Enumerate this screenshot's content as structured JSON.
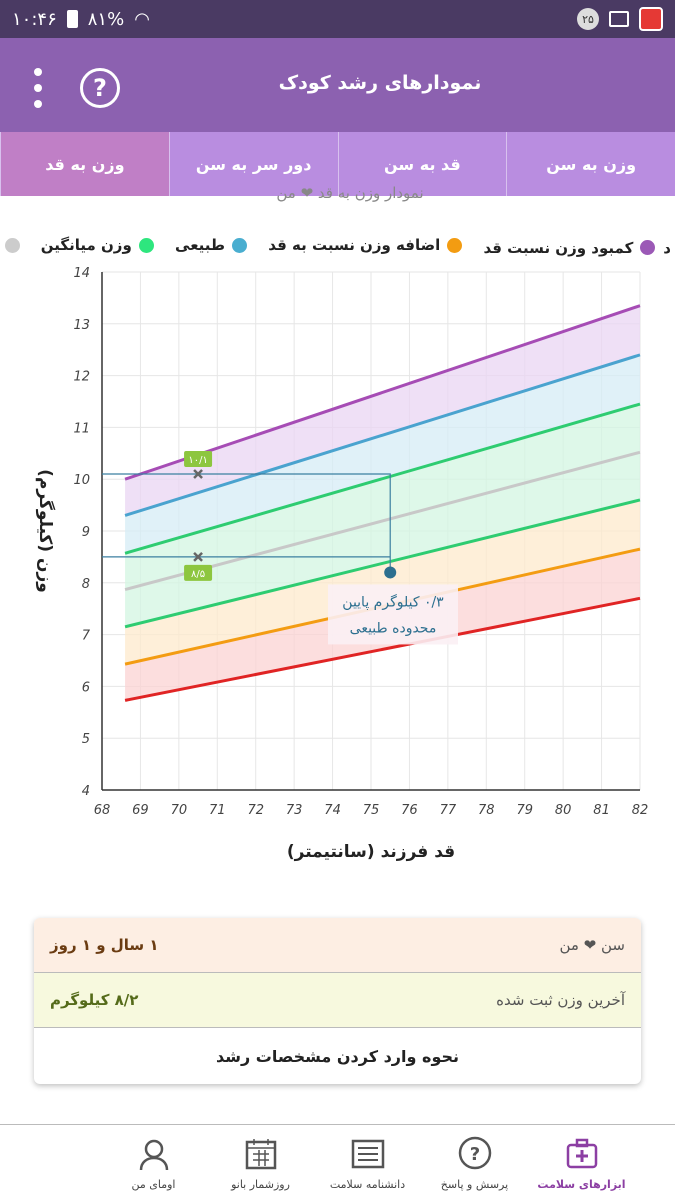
{
  "status_bar": {
    "time": "۱۰:۴۶",
    "battery": "۸۱%",
    "notification_count": "۲۵"
  },
  "header": {
    "title": "نمودارهای رشد کودک"
  },
  "tabs": [
    {
      "label": "وزن به سن",
      "active": false
    },
    {
      "label": "قد به سن",
      "active": false
    },
    {
      "label": "دور سر به سن",
      "active": false
    },
    {
      "label": "وزن به قد",
      "active": true
    }
  ],
  "chart_title_clipped": "نمودار وزن به قد ❤ من",
  "legend": [
    {
      "label": "کمبود وزن نسبت قد",
      "color": "#9b59b6",
      "prefix": "د"
    },
    {
      "label": "اضافه وزن نسبت به قد",
      "color": "#f39c12"
    },
    {
      "label": "طبیعی",
      "color": "#4aaed0"
    },
    {
      "label": "وزن میانگین",
      "color": "#2ee67e"
    },
    {
      "label": "",
      "color": "#cccccc"
    }
  ],
  "chart_data": {
    "type": "line",
    "xlabel": "قد فرزند (سانتیمتر)",
    "ylabel": "وزن (کیلوگرم)",
    "xlim": [
      68,
      82
    ],
    "ylim": [
      4,
      14
    ],
    "x_ticks": [
      68,
      69,
      70,
      71,
      72,
      73,
      74,
      75,
      76,
      77,
      78,
      79,
      80,
      81,
      82
    ],
    "y_ticks": [
      4,
      5,
      6,
      7,
      8,
      9,
      10,
      11,
      12,
      13,
      14
    ],
    "series": [
      {
        "color": "#a64cb5",
        "x": [
          68.6,
          82
        ],
        "y": [
          10.0,
          13.35
        ]
      },
      {
        "color": "#4aa3cf",
        "x": [
          68.6,
          82
        ],
        "y": [
          9.3,
          12.4
        ]
      },
      {
        "color": "#2ecc71",
        "x": [
          68.6,
          82
        ],
        "y": [
          8.57,
          11.45
        ]
      },
      {
        "color": "#c8c8c8",
        "x": [
          68.6,
          82
        ],
        "y": [
          7.87,
          10.52
        ]
      },
      {
        "color": "#2ecc71",
        "x": [
          68.6,
          82
        ],
        "y": [
          7.15,
          9.6
        ]
      },
      {
        "color": "#f39c12",
        "x": [
          68.6,
          82
        ],
        "y": [
          6.43,
          8.65
        ]
      },
      {
        "color": "#e02424",
        "x": [
          68.6,
          82
        ],
        "y": [
          5.73,
          7.7
        ]
      }
    ],
    "bands": [
      {
        "color": "#e9d5f3",
        "between": [
          0,
          1
        ]
      },
      {
        "color": "#d6ecf6",
        "between": [
          1,
          2
        ]
      },
      {
        "color": "#d3f5e1",
        "between": [
          2,
          3
        ]
      },
      {
        "color": "#d3f5e1",
        "between": [
          3,
          4
        ]
      },
      {
        "color": "#fde9cc",
        "between": [
          4,
          5
        ]
      },
      {
        "color": "#fbd3d3",
        "between": [
          5,
          6
        ]
      }
    ],
    "markers": [
      {
        "x": 70.5,
        "y": 10.1,
        "label": "۱۰/۱"
      },
      {
        "x": 70.5,
        "y": 8.5,
        "label": "۸/۵"
      }
    ],
    "child_point": {
      "x": 75.5,
      "y": 8.2
    },
    "annotation": [
      "۰/۳ کیلوگرم پایین",
      "محدوده طبیعی"
    ]
  },
  "info": {
    "age_label": "سن ❤ من",
    "age_value": "۱ سال و ۱ روز",
    "weight_label": "آخرین وزن ثبت شده",
    "weight_value": "۸/۲ کیلوگرم",
    "link": "نحوه وارد کردن مشخصات رشد"
  },
  "bottom_nav": [
    {
      "label": "ابزارهای سلامت",
      "icon": "medical-kit-icon",
      "active": true
    },
    {
      "label": "پرسش و پاسخ",
      "icon": "question-bubble-icon",
      "active": false
    },
    {
      "label": "دانشنامه سلامت",
      "icon": "encyclopedia-icon",
      "active": false
    },
    {
      "label": "روزشمار بانو",
      "icon": "calendar-icon",
      "active": false
    },
    {
      "label": "اومای من",
      "icon": "profile-icon",
      "active": false
    }
  ]
}
